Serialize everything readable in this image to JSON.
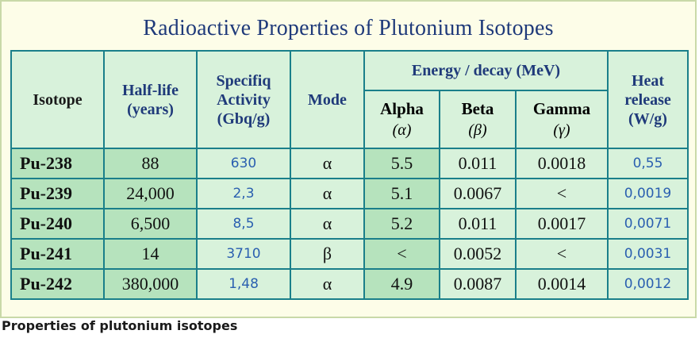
{
  "title": "Radioactive Properties of Plutonium Isotopes",
  "headers": {
    "isotope": "Isotope",
    "halflife_1": "Half-life",
    "halflife_2": "(years)",
    "activity_1": "Specifiq",
    "activity_2": "Activity",
    "activity_3": "(Gbq/g)",
    "mode": "Mode",
    "energy": "Energy / decay (MeV)",
    "alpha": "Alpha",
    "alpha_sym": "(α)",
    "beta": "Beta",
    "beta_sym": "(β)",
    "gamma": "Gamma",
    "gamma_sym": "(γ)",
    "heat_1": "Heat",
    "heat_2": "release",
    "heat_3": "(W/g)"
  },
  "rows": [
    {
      "isotope": "Pu-238",
      "halflife": "88",
      "activity": "630",
      "mode": "α",
      "alpha": "5.5",
      "beta": "0.011",
      "gamma": "0.0018",
      "heat": "0,55"
    },
    {
      "isotope": "Pu-239",
      "halflife": "24,000",
      "activity": "2,3",
      "mode": "α",
      "alpha": "5.1",
      "beta": "0.0067",
      "gamma": "<",
      "heat": "0,0019"
    },
    {
      "isotope": "Pu-240",
      "halflife": "6,500",
      "activity": "8,5",
      "mode": "α",
      "alpha": "5.2",
      "beta": "0.011",
      "gamma": "0.0017",
      "heat": "0,0071"
    },
    {
      "isotope": "Pu-241",
      "halflife": "14",
      "activity": "3710",
      "mode": "β",
      "alpha": "<",
      "beta": "0.0052",
      "gamma": "<",
      "heat": "0,0031"
    },
    {
      "isotope": "Pu-242",
      "halflife": "380,000",
      "activity": "1,48",
      "mode": "α",
      "alpha": "4.9",
      "beta": "0.0087",
      "gamma": "0.0014",
      "heat": "0,0012"
    }
  ],
  "caption": "Properties of plutonium isotopes"
}
